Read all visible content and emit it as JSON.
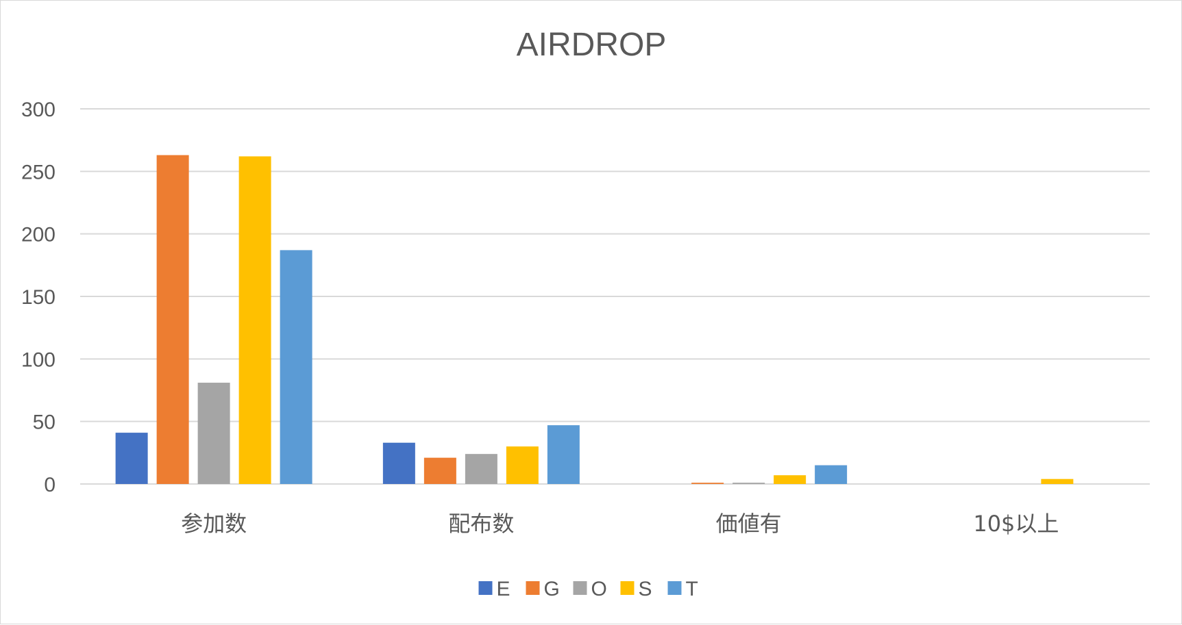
{
  "chart_data": {
    "type": "bar",
    "title": "AIRDROP",
    "categories": [
      "参加数",
      "配布数",
      "価値有",
      "10$以上"
    ],
    "series": [
      {
        "name": "E",
        "color": "#4472C4",
        "values": [
          41,
          33,
          0,
          0
        ]
      },
      {
        "name": "G",
        "color": "#ED7D31",
        "values": [
          263,
          21,
          1,
          0
        ]
      },
      {
        "name": "O",
        "color": "#A5A5A5",
        "values": [
          81,
          24,
          1,
          0
        ]
      },
      {
        "name": "S",
        "color": "#FFC000",
        "values": [
          262,
          30,
          7,
          4
        ]
      },
      {
        "name": "T",
        "color": "#5B9BD5",
        "values": [
          187,
          47,
          15,
          0
        ]
      }
    ],
    "y_ticks": [
      "0",
      "50",
      "100",
      "150",
      "200",
      "250",
      "300"
    ],
    "ylim": [
      0,
      300
    ],
    "grid": true,
    "legend_position": "bottom"
  }
}
